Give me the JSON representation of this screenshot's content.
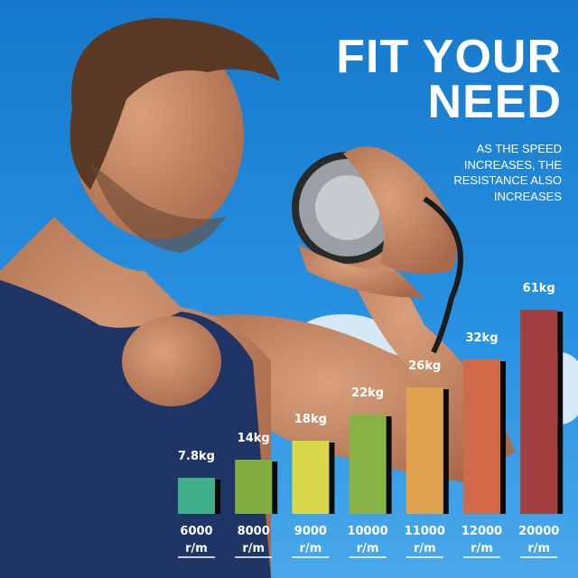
{
  "headline": {
    "line1": "FIT YOUR",
    "line2": "NEED"
  },
  "subtitle": [
    "AS THE SPEED",
    "INCREASES, THE",
    "RESISTANCE ALSO",
    "INCREASES"
  ],
  "chart_data": {
    "type": "bar",
    "categories": [
      "6000",
      "8000",
      "9000",
      "10000",
      "11000",
      "12000",
      "20000"
    ],
    "category_unit": "r/m",
    "values": [
      7.8,
      14,
      18,
      22,
      26,
      32,
      61
    ],
    "value_labels": [
      "7.8kg",
      "14kg",
      "18kg",
      "22kg",
      "26kg",
      "32kg",
      "61kg"
    ],
    "colors": [
      "#3fae8a",
      "#80ad3e",
      "#d8d84a",
      "#87b245",
      "#e0a24c",
      "#d06a48",
      "#a23f3f"
    ],
    "grid": false,
    "axes_visible": false
  }
}
